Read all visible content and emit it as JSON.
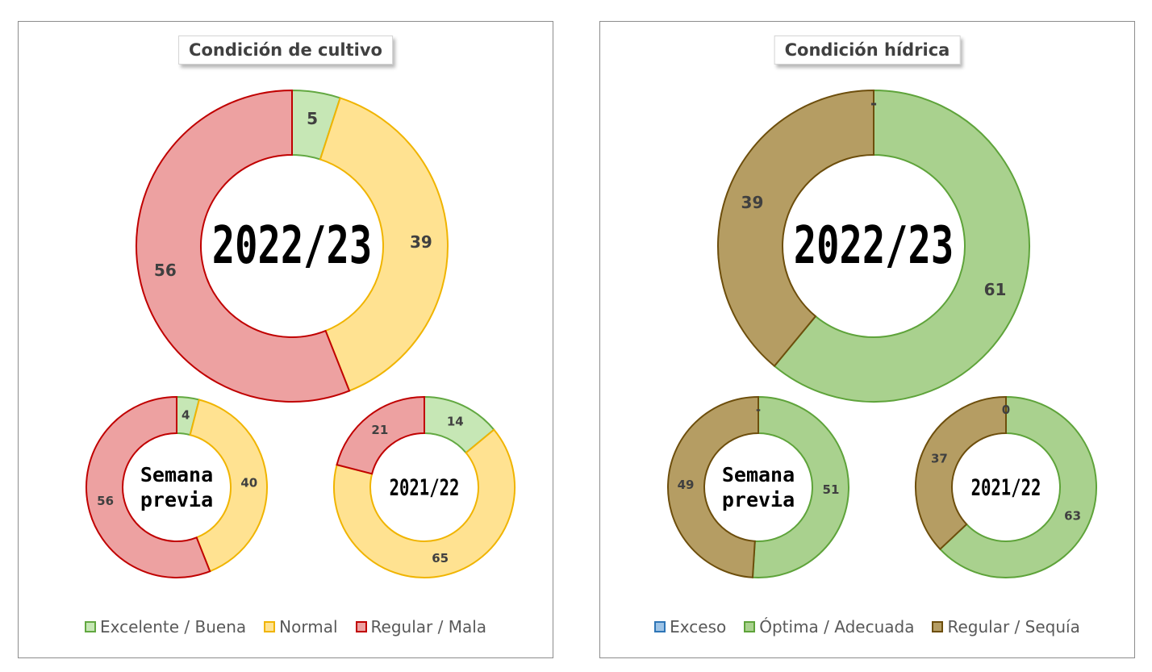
{
  "chart_data": [
    {
      "type": "donut",
      "title": "Condición de cultivo",
      "legend": [
        {
          "label": "Excelente / Buena",
          "fill": "#c6e7b5",
          "stroke": "#62a841"
        },
        {
          "label": "Normal",
          "fill": "#ffe291",
          "stroke": "#f0b400"
        },
        {
          "label": "Regular / Mala",
          "fill": "#eda1a1",
          "stroke": "#c00000"
        }
      ],
      "legend_position": "bottom",
      "donuts": [
        {
          "center_label_lines": [
            "2022/23"
          ],
          "values": [
            5,
            39,
            56
          ],
          "labels": [
            "5",
            "39",
            "56"
          ]
        },
        {
          "center_label_lines": [
            "Semana",
            "previa"
          ],
          "values": [
            4,
            40,
            56
          ],
          "labels": [
            "4",
            "40",
            "56"
          ]
        },
        {
          "center_label_lines": [
            "2021/22"
          ],
          "values": [
            14,
            65,
            21
          ],
          "labels": [
            "14",
            "65",
            "21"
          ]
        }
      ]
    },
    {
      "type": "donut",
      "title": "Condición hídrica",
      "legend": [
        {
          "label": "Exceso",
          "fill": "#9dc3e6",
          "stroke": "#2e75b6"
        },
        {
          "label": "Óptima / Adecuada",
          "fill": "#a9d18e",
          "stroke": "#5ea33a"
        },
        {
          "label": "Regular / Sequía",
          "fill": "#b59d63",
          "stroke": "#6d4e0c"
        }
      ],
      "legend_position": "bottom",
      "donuts": [
        {
          "center_label_lines": [
            "2022/23"
          ],
          "values": [
            0,
            61,
            39
          ],
          "labels": [
            "-",
            "61",
            "39"
          ]
        },
        {
          "center_label_lines": [
            "Semana",
            "previa"
          ],
          "values": [
            0,
            51,
            49
          ],
          "labels": [
            "-",
            "51",
            "49"
          ]
        },
        {
          "center_label_lines": [
            "2021/22"
          ],
          "values": [
            0,
            63,
            37
          ],
          "labels": [
            "0",
            "63",
            "37"
          ]
        }
      ]
    }
  ]
}
